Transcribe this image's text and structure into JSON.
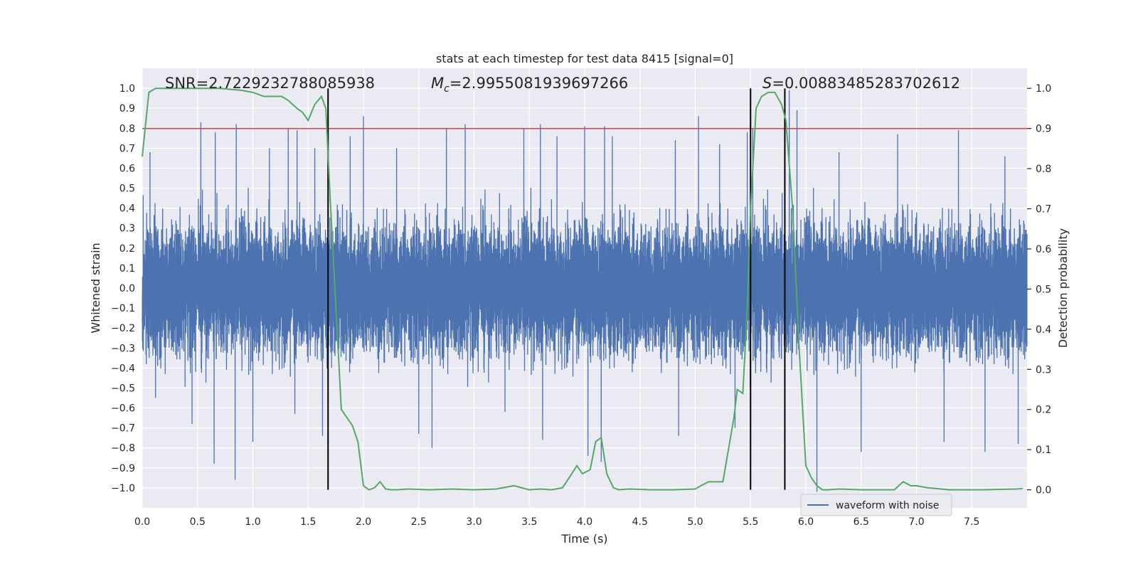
{
  "chart_data": {
    "type": "line",
    "title": "stats at each timestep for test data 8415 [signal=0]",
    "xlabel": "Time (s)",
    "ylabel": "Whitened strain",
    "y2label": "Detection probability",
    "xlim": [
      0.0,
      8.0
    ],
    "ylim": [
      -1.1,
      1.1
    ],
    "y2lim": [
      -0.045,
      1.05
    ],
    "x_ticks": [
      "0.0",
      "0.5",
      "1.0",
      "1.5",
      "2.0",
      "2.5",
      "3.0",
      "3.5",
      "4.0",
      "4.5",
      "5.0",
      "5.5",
      "6.0",
      "6.5",
      "7.0",
      "7.5"
    ],
    "y_ticks": [
      "1.0",
      "0.9",
      "0.8",
      "0.7",
      "0.6",
      "0.5",
      "0.4",
      "0.3",
      "0.2",
      "0.1",
      "0.0",
      "-0.1",
      "-0.2",
      "-0.3",
      "-0.4",
      "-0.5",
      "-0.6",
      "-0.7",
      "-0.8",
      "-0.9",
      "-1.0"
    ],
    "y2_ticks": [
      "1.0",
      "0.9",
      "0.8",
      "0.7",
      "0.6",
      "0.5",
      "0.4",
      "0.3",
      "0.2",
      "0.1",
      "0.0"
    ],
    "grid": true,
    "legend": {
      "position": "lower-right",
      "entries": [
        "waveform with noise"
      ]
    },
    "annotations": {
      "snr": "SNR=2.7229232788085938",
      "mc_symbol": "M",
      "mc_sub": "c",
      "mc_value": "=2.9955081939697266",
      "s_symbol": "S",
      "s_value": "=0.00883485283702612"
    },
    "threshold": {
      "value": 0.9,
      "axis": "y2",
      "color": "#c44e52"
    },
    "vlines": [
      1.68,
      5.5,
      5.81
    ],
    "colors": {
      "waveform": "#4c72b0",
      "probability": "#55a868",
      "vline": "#000000",
      "background": "#eaeaf2"
    },
    "series": [
      {
        "name": "waveform with noise",
        "kind": "noise",
        "sample_rate": 2048,
        "duration": 8.0,
        "envelope": [
          -0.6,
          0.6
        ],
        "spikes": [
          [
            0.07,
            0.68
          ],
          [
            0.53,
            0.83
          ],
          [
            0.66,
            0.78
          ],
          [
            0.85,
            0.82
          ],
          [
            1.15,
            0.7
          ],
          [
            1.32,
            0.8
          ],
          [
            1.4,
            0.79
          ],
          [
            1.56,
            0.7
          ],
          [
            1.88,
            0.76
          ],
          [
            2.0,
            0.86
          ],
          [
            2.3,
            0.7
          ],
          [
            2.62,
            0.8
          ],
          [
            2.75,
            0.8
          ],
          [
            2.92,
            0.82
          ],
          [
            3.45,
            0.8
          ],
          [
            3.6,
            0.82
          ],
          [
            3.75,
            0.76
          ],
          [
            4.0,
            0.81
          ],
          [
            4.18,
            0.81
          ],
          [
            4.25,
            0.76
          ],
          [
            4.82,
            0.74
          ],
          [
            5.03,
            0.86
          ],
          [
            5.22,
            0.72
          ],
          [
            5.47,
            0.78
          ],
          [
            5.52,
            0.8
          ],
          [
            5.85,
            0.99
          ],
          [
            5.92,
            0.89
          ],
          [
            6.3,
            0.68
          ],
          [
            6.83,
            0.77
          ],
          [
            7.38,
            0.79
          ],
          [
            7.8,
            0.66
          ],
          [
            0.12,
            -0.55
          ],
          [
            0.45,
            -0.68
          ],
          [
            0.65,
            -0.88
          ],
          [
            0.84,
            -0.96
          ],
          [
            1.0,
            -0.77
          ],
          [
            1.38,
            -0.63
          ],
          [
            1.63,
            -0.74
          ],
          [
            2.5,
            -0.73
          ],
          [
            2.62,
            -0.8
          ],
          [
            3.28,
            -0.62
          ],
          [
            3.62,
            -0.76
          ],
          [
            4.03,
            -0.84
          ],
          [
            4.15,
            -0.87
          ],
          [
            4.85,
            -0.74
          ],
          [
            5.36,
            -0.7
          ],
          [
            6.1,
            -1.02
          ],
          [
            6.5,
            -0.82
          ],
          [
            7.25,
            -0.77
          ],
          [
            7.62,
            -0.82
          ],
          [
            7.92,
            -0.78
          ]
        ]
      },
      {
        "name": "detection probability",
        "axis": "y2",
        "x": [
          0.0,
          0.06,
          0.12,
          0.2,
          0.3,
          0.5,
          0.7,
          0.9,
          1.0,
          1.1,
          1.2,
          1.26,
          1.32,
          1.4,
          1.45,
          1.5,
          1.56,
          1.62,
          1.66,
          1.7,
          1.8,
          1.9,
          1.95,
          2.0,
          2.05,
          2.1,
          2.15,
          2.2,
          2.25,
          2.3,
          2.4,
          2.6,
          2.8,
          3.0,
          3.2,
          3.36,
          3.5,
          3.6,
          3.7,
          3.8,
          3.86,
          3.93,
          3.98,
          4.05,
          4.1,
          4.15,
          4.2,
          4.26,
          4.31,
          4.4,
          4.6,
          4.8,
          5.0,
          5.05,
          5.12,
          5.18,
          5.25,
          5.3,
          5.35,
          5.38,
          5.43,
          5.47,
          5.5,
          5.55,
          5.6,
          5.66,
          5.72,
          5.78,
          5.82,
          5.88,
          5.94,
          6.0,
          6.05,
          6.1,
          6.15,
          6.2,
          6.3,
          6.5,
          6.8,
          6.88,
          6.95,
          7.0,
          7.1,
          7.3,
          7.6,
          7.9,
          7.96
        ],
        "values": [
          0.83,
          0.99,
          1.0,
          1.0,
          1.0,
          1.0,
          1.0,
          0.995,
          0.99,
          0.98,
          0.98,
          0.98,
          0.97,
          0.95,
          0.94,
          0.92,
          0.96,
          0.98,
          0.95,
          0.72,
          0.2,
          0.16,
          0.12,
          0.01,
          0.0,
          0.005,
          0.02,
          0.002,
          0.0,
          0.0,
          0.002,
          0.0,
          0.002,
          0.0,
          0.002,
          0.01,
          0.0,
          0.002,
          0.0,
          0.005,
          0.03,
          0.06,
          0.04,
          0.05,
          0.12,
          0.13,
          0.04,
          0.005,
          0.0,
          0.002,
          0.0,
          0.0,
          0.002,
          0.01,
          0.02,
          0.02,
          0.02,
          0.1,
          0.18,
          0.25,
          0.24,
          0.45,
          0.7,
          0.95,
          0.98,
          0.99,
          0.99,
          0.96,
          0.92,
          0.7,
          0.35,
          0.06,
          0.03,
          0.01,
          0.0,
          0.0,
          0.002,
          0.0,
          0.0,
          0.02,
          0.01,
          0.01,
          0.005,
          0.0,
          0.0,
          0.002,
          0.003
        ]
      }
    ]
  }
}
